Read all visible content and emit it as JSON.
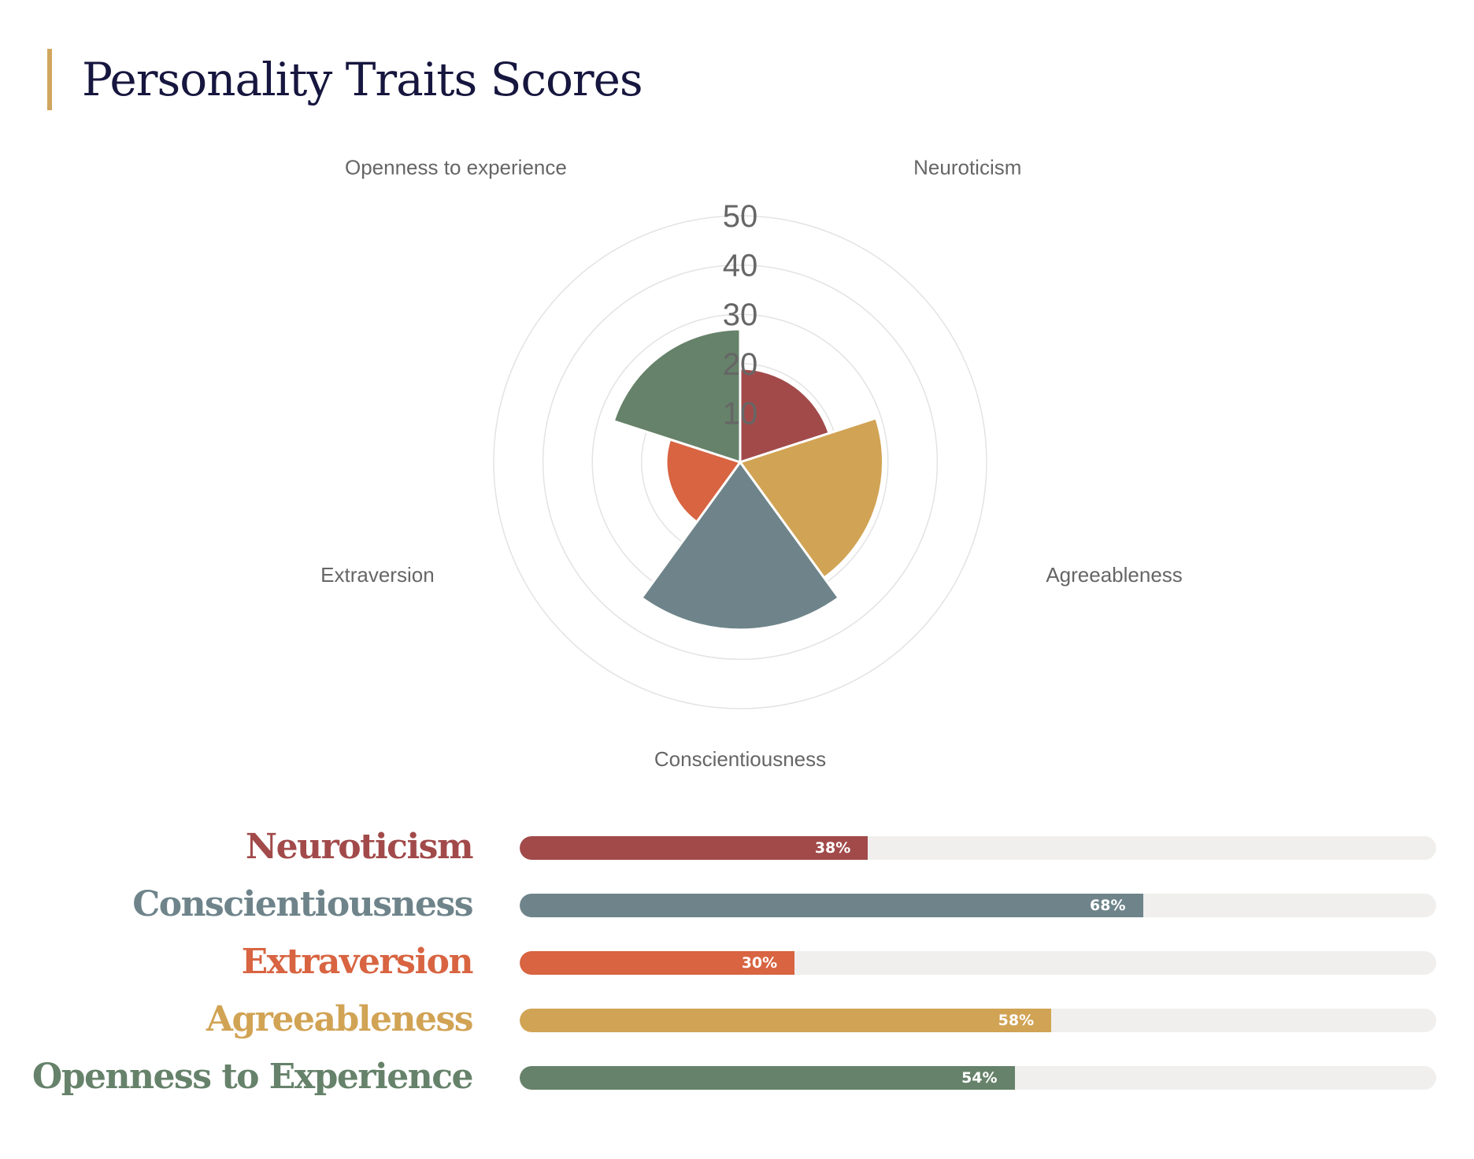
{
  "page": {
    "title": "Personality Traits Scores",
    "accent_color": "#d0a65e",
    "title_color": "#16163f"
  },
  "chart_data": [
    {
      "type": "polar-area",
      "radial_axis": {
        "min": 0,
        "max": 50,
        "ticks": [
          "10",
          "20",
          "30",
          "40",
          "50"
        ],
        "grid": true
      },
      "categories": [
        "Neuroticism",
        "Agreeableness",
        "Conscientiousness",
        "Extraversion",
        "Openness to experience"
      ],
      "values": [
        19,
        29,
        34,
        15,
        27
      ],
      "colors": [
        "#a24a4a",
        "#d1a354",
        "#6e848a",
        "#d86441",
        "#66826a"
      ]
    },
    {
      "type": "bar",
      "orientation": "horizontal",
      "value_unit": "%",
      "categories": [
        "Neuroticism",
        "Conscientiousness",
        "Extraversion",
        "Agreeableness",
        "Openness to Experience"
      ],
      "values": [
        38,
        68,
        30,
        58,
        54
      ],
      "value_labels": [
        "38%",
        "68%",
        "30%",
        "58%",
        "54%"
      ],
      "colors": [
        "#a24a4a",
        "#6e848a",
        "#d86441",
        "#d1a354",
        "#66826a"
      ],
      "xlim": [
        0,
        100
      ]
    }
  ]
}
